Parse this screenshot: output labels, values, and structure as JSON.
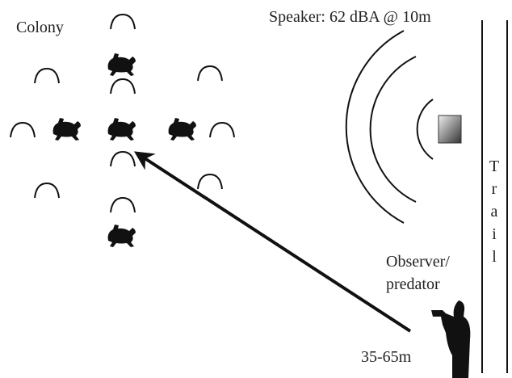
{
  "labels": {
    "colony": "Colony",
    "speaker": "Speaker: 62 dBA @ 10m",
    "trail": "Trail",
    "observer": [
      "Observer/",
      "predator"
    ],
    "distance": "35-65m"
  }
}
